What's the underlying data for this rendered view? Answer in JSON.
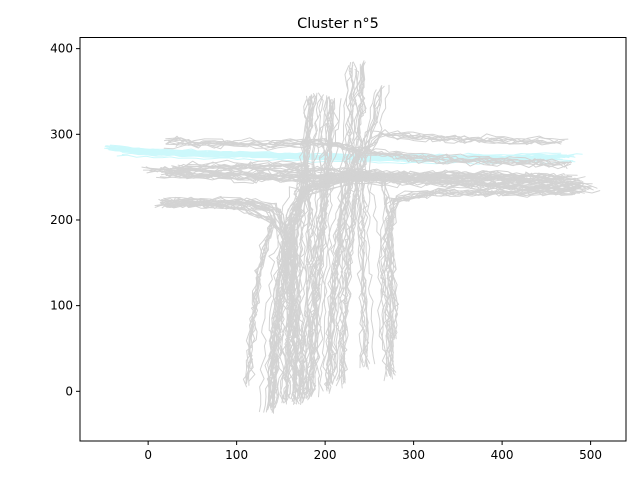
{
  "chart_data": {
    "type": "line",
    "title": "Cluster n°5",
    "xlabel": "",
    "ylabel": "",
    "xlim": [
      -77,
      540
    ],
    "ylim": [
      -58,
      413
    ],
    "xticks": [
      0,
      100,
      200,
      300,
      400,
      500
    ],
    "yticks": [
      0,
      100,
      200,
      300,
      400
    ],
    "grid": false,
    "colors": {
      "background_traces": "#d3d3d3",
      "cluster_traces": "#ccf8fb"
    },
    "trace_groups": [
      {
        "role": "cluster",
        "color": "#ccf8fb",
        "bundles": [
          {
            "count": 14,
            "spread": 6,
            "jitter": 2.5,
            "path": [
              [
                -45,
                285
              ],
              [
                0,
                280
              ],
              [
                100,
                277
              ],
              [
                200,
                274
              ],
              [
                300,
                274
              ],
              [
                400,
                273
              ],
              [
                470,
                275
              ]
            ]
          },
          {
            "count": 10,
            "spread": 5,
            "jitter": 2.5,
            "path": [
              [
                470,
                272
              ],
              [
                400,
                270
              ],
              [
                300,
                270
              ],
              [
                200,
                272
              ],
              [
                100,
                275
              ],
              [
                0,
                277
              ],
              [
                -30,
                280
              ]
            ]
          }
        ]
      },
      {
        "role": "background",
        "color": "#d3d3d3",
        "bundles": [
          {
            "count": 22,
            "spread": 9,
            "jitter": 6,
            "path": [
              [
                138,
                -20
              ],
              [
                142,
                60
              ],
              [
                150,
                140
              ],
              [
                160,
                200
              ],
              [
                175,
                235
              ],
              [
                230,
                250
              ],
              [
                350,
                245
              ],
              [
                430,
                240
              ],
              [
                490,
                238
              ]
            ]
          },
          {
            "count": 16,
            "spread": 7,
            "jitter": 6,
            "path": [
              [
                158,
                -10
              ],
              [
                160,
                60
              ],
              [
                165,
                140
              ],
              [
                170,
                200
              ],
              [
                178,
                250
              ],
              [
                183,
                300
              ],
              [
                188,
                345
              ]
            ]
          },
          {
            "count": 16,
            "spread": 7,
            "jitter": 6,
            "path": [
              [
                182,
                -5
              ],
              [
                187,
                60
              ],
              [
                192,
                140
              ],
              [
                197,
                200
              ],
              [
                202,
                250
              ],
              [
                205,
                300
              ],
              [
                207,
                340
              ]
            ]
          },
          {
            "count": 16,
            "spread": 8,
            "jitter": 6,
            "path": [
              [
                215,
                10
              ],
              [
                218,
                80
              ],
              [
                222,
                150
              ],
              [
                228,
                210
              ],
              [
                232,
                260
              ],
              [
                235,
                320
              ],
              [
                238,
                380
              ]
            ]
          },
          {
            "count": 12,
            "spread": 6,
            "jitter": 6,
            "path": [
              [
                272,
                20
              ],
              [
                270,
                100
              ],
              [
                268,
                180
              ],
              [
                278,
                225
              ],
              [
                330,
                233
              ],
              [
                420,
                233
              ],
              [
                480,
                235
              ]
            ]
          },
          {
            "count": 8,
            "spread": 6,
            "jitter": 6,
            "path": [
              [
                245,
                30
              ],
              [
                243,
                120
              ],
              [
                241,
                200
              ],
              [
                240,
                260
              ],
              [
                255,
                320
              ],
              [
                262,
                355
              ]
            ]
          },
          {
            "count": 8,
            "spread": 6,
            "jitter": 6,
            "path": [
              [
                112,
                10
              ],
              [
                118,
                80
              ],
              [
                125,
                140
              ],
              [
                140,
                200
              ],
              [
                100,
                215
              ],
              [
                50,
                220
              ],
              [
                15,
                220
              ]
            ]
          },
          {
            "count": 16,
            "spread": 8,
            "jitter": 6,
            "path": [
              [
                15,
                220
              ],
              [
                60,
                222
              ],
              [
                110,
                222
              ],
              [
                140,
                215
              ],
              [
                158,
                170
              ],
              [
                165,
                80
              ],
              [
                170,
                -10
              ]
            ]
          },
          {
            "count": 18,
            "spread": 9,
            "jitter": 6,
            "path": [
              [
                20,
                255
              ],
              [
                120,
                250
              ],
              [
                220,
                250
              ],
              [
                330,
                252
              ],
              [
                420,
                250
              ],
              [
                480,
                248
              ]
            ]
          },
          {
            "count": 10,
            "spread": 8,
            "jitter": 6,
            "path": [
              [
                20,
                290
              ],
              [
                130,
                288
              ],
              [
                200,
                290
              ],
              [
                240,
                280
              ],
              [
                300,
                272
              ],
              [
                400,
                268
              ],
              [
                470,
                265
              ]
            ]
          },
          {
            "count": 8,
            "spread": 6,
            "jitter": 6,
            "path": [
              [
                460,
                290
              ],
              [
                400,
                292
              ],
              [
                320,
                295
              ],
              [
                260,
                300
              ],
              [
                230,
                270
              ],
              [
                215,
                200
              ],
              [
                205,
                100
              ],
              [
                200,
                0
              ]
            ]
          },
          {
            "count": 8,
            "spread": 6,
            "jitter": 6,
            "path": [
              [
                30,
                260
              ],
              [
                120,
                262
              ],
              [
                180,
                262
              ],
              [
                185,
                200
              ],
              [
                180,
                100
              ],
              [
                175,
                0
              ]
            ]
          },
          {
            "count": 6,
            "spread": 5,
            "jitter": 6,
            "path": [
              [
                0,
                258
              ],
              [
                100,
                258
              ],
              [
                200,
                258
              ],
              [
                260,
                255
              ],
              [
                272,
                180
              ],
              [
                275,
                60
              ]
            ]
          }
        ]
      }
    ]
  }
}
